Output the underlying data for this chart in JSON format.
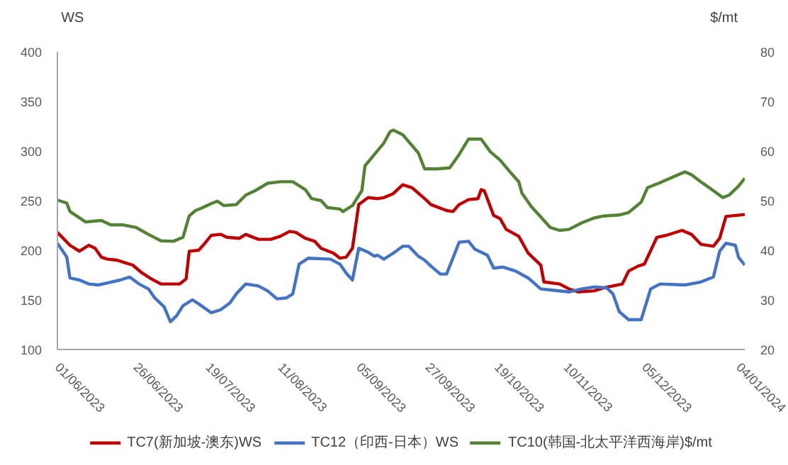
{
  "chart_data": {
    "type": "line",
    "ylabel": "WS",
    "y2label": "$/mt",
    "xlim": [
      "2023-06-01",
      "2024-01-06"
    ],
    "xticks": [
      {
        "value": "2023-06-01",
        "label": "01/06/2023"
      },
      {
        "value": "2023-06-26",
        "label": "26/06/2023"
      },
      {
        "value": "2023-07-19",
        "label": "19/07/2023"
      },
      {
        "value": "2023-08-11",
        "label": "11/08/2023"
      },
      {
        "value": "2023-09-05",
        "label": "05/09/2023"
      },
      {
        "value": "2023-09-27",
        "label": "27/09/2023"
      },
      {
        "value": "2023-10-19",
        "label": "19/10/2023"
      },
      {
        "value": "2023-11-10",
        "label": "10/11/2023"
      },
      {
        "value": "2023-12-05",
        "label": "05/12/2023"
      },
      {
        "value": "2024-01-04",
        "label": "04/01/2024"
      }
    ],
    "ylim": [
      100,
      400
    ],
    "yticks": [
      100,
      150,
      200,
      250,
      300,
      350,
      400
    ],
    "y2lim": [
      20,
      80
    ],
    "y2ticks": [
      20,
      30,
      40,
      50,
      60,
      70,
      80
    ],
    "grid": false,
    "legend": "bottom",
    "line_style": "solid",
    "series": [
      {
        "name": "TC7(新加坡-澳东)WS",
        "color": "#c00000",
        "x": [
          "2023-06-01",
          "2023-06-05",
          "2023-06-08",
          "2023-06-11",
          "2023-06-13",
          "2023-06-15",
          "2023-06-17",
          "2023-06-20",
          "2023-06-22",
          "2023-06-25",
          "2023-06-28",
          "2023-07-01",
          "2023-07-04",
          "2023-07-10",
          "2023-07-12",
          "2023-07-13",
          "2023-07-16",
          "2023-07-18",
          "2023-07-20",
          "2023-07-23",
          "2023-07-25",
          "2023-07-29",
          "2023-07-31",
          "2023-08-04",
          "2023-08-08",
          "2023-08-11",
          "2023-08-14",
          "2023-08-16",
          "2023-08-19",
          "2023-08-22",
          "2023-08-24",
          "2023-08-28",
          "2023-08-30",
          "2023-09-01",
          "2023-09-03",
          "2023-09-05",
          "2023-09-08",
          "2023-09-11",
          "2023-09-13",
          "2023-09-16",
          "2023-09-19",
          "2023-09-22",
          "2023-09-26",
          "2023-09-28",
          "2023-10-03",
          "2023-10-05",
          "2023-10-07",
          "2023-10-10",
          "2023-10-13",
          "2023-10-14",
          "2023-10-15",
          "2023-10-18",
          "2023-10-20",
          "2023-10-22",
          "2023-10-26",
          "2023-10-29",
          "2023-11-02",
          "2023-11-03",
          "2023-11-08",
          "2023-11-11",
          "2023-11-14",
          "2023-11-19",
          "2023-11-22",
          "2023-11-28",
          "2023-11-30",
          "2023-12-03",
          "2023-12-05",
          "2023-12-09",
          "2023-12-12",
          "2023-12-17",
          "2023-12-20",
          "2023-12-23",
          "2023-12-27",
          "2023-12-29",
          "2023-12-31",
          "2024-01-06"
        ],
        "values": [
          218,
          205,
          199,
          205,
          202,
          193,
          191,
          190,
          188,
          185,
          177,
          171,
          166,
          166,
          171,
          199,
          200,
          207,
          215,
          216,
          213,
          212,
          216,
          211,
          211,
          214,
          219,
          218,
          212,
          209,
          202,
          197,
          192,
          193,
          202,
          246,
          253,
          252,
          253,
          257,
          266,
          263,
          252,
          246,
          240,
          239,
          246,
          251,
          252,
          261,
          260,
          235,
          232,
          221,
          214,
          197,
          185,
          168,
          166,
          161,
          158,
          159,
          162,
          166,
          179,
          184,
          186,
          213,
          215,
          220,
          216,
          206,
          204,
          212,
          234,
          236
        ]
      },
      {
        "name": "TC12（印西-日本）WS",
        "color": "#4472c4",
        "x": [
          "2023-06-01",
          "2023-06-04",
          "2023-06-05",
          "2023-06-08",
          "2023-06-11",
          "2023-06-14",
          "2023-06-17",
          "2023-06-21",
          "2023-06-24",
          "2023-06-27",
          "2023-06-30",
          "2023-07-02",
          "2023-07-05",
          "2023-07-07",
          "2023-07-09",
          "2023-07-11",
          "2023-07-14",
          "2023-07-16",
          "2023-07-20",
          "2023-07-23",
          "2023-07-26",
          "2023-07-28",
          "2023-07-31",
          "2023-08-04",
          "2023-08-07",
          "2023-08-10",
          "2023-08-13",
          "2023-08-15",
          "2023-08-17",
          "2023-08-20",
          "2023-08-27",
          "2023-08-30",
          "2023-09-01",
          "2023-09-03",
          "2023-09-05",
          "2023-09-08",
          "2023-09-10",
          "2023-09-11",
          "2023-09-13",
          "2023-09-15",
          "2023-09-16",
          "2023-09-19",
          "2023-09-21",
          "2023-09-24",
          "2023-09-26",
          "2023-09-28",
          "2023-10-01",
          "2023-10-03",
          "2023-10-07",
          "2023-10-10",
          "2023-10-12",
          "2023-10-16",
          "2023-10-18",
          "2023-10-21",
          "2023-10-25",
          "2023-10-29",
          "2023-11-02",
          "2023-11-05",
          "2023-11-11",
          "2023-11-15",
          "2023-11-19",
          "2023-11-23",
          "2023-11-25",
          "2023-11-27",
          "2023-11-30",
          "2023-12-04",
          "2023-12-07",
          "2023-12-10",
          "2023-12-18",
          "2023-12-23",
          "2023-12-27",
          "2023-12-29",
          "2023-12-31",
          "2024-01-03",
          "2024-01-04",
          "2024-01-06"
        ],
        "values": [
          207,
          193,
          172,
          170,
          166,
          165,
          167,
          170,
          173,
          166,
          161,
          152,
          143,
          128,
          134,
          144,
          150,
          146,
          137,
          140,
          147,
          156,
          166,
          164,
          159,
          151,
          152,
          156,
          186,
          192,
          191,
          186,
          177,
          170,
          202,
          198,
          194,
          195,
          191,
          195,
          197,
          204,
          204,
          194,
          190,
          184,
          176,
          176,
          208,
          209,
          201,
          195,
          182,
          183,
          179,
          172,
          161,
          160,
          158,
          161,
          163,
          162,
          156,
          138,
          130,
          130,
          161,
          166,
          165,
          168,
          173,
          199,
          207,
          205,
          193,
          185
        ]
      },
      {
        "name": "TC10(韩国-北太平洋西海岸)$/mt",
        "color": "#548235",
        "axis": "y2",
        "x": [
          "2023-06-01",
          "2023-06-04",
          "2023-06-05",
          "2023-06-10",
          "2023-06-15",
          "2023-06-18",
          "2023-06-22",
          "2023-06-26",
          "2023-06-30",
          "2023-07-04",
          "2023-07-08",
          "2023-07-11",
          "2023-07-13",
          "2023-07-15",
          "2023-07-17",
          "2023-07-20",
          "2023-07-22",
          "2023-07-24",
          "2023-07-28",
          "2023-07-31",
          "2023-08-03",
          "2023-08-07",
          "2023-08-11",
          "2023-08-15",
          "2023-08-19",
          "2023-08-21",
          "2023-08-24",
          "2023-08-26",
          "2023-08-30",
          "2023-08-31",
          "2023-09-03",
          "2023-09-06",
          "2023-09-07",
          "2023-09-10",
          "2023-09-13",
          "2023-09-15",
          "2023-09-16",
          "2023-09-19",
          "2023-09-24",
          "2023-09-26",
          "2023-09-30",
          "2023-10-04",
          "2023-10-07",
          "2023-10-10",
          "2023-10-14",
          "2023-10-17",
          "2023-10-20",
          "2023-10-24",
          "2023-10-26",
          "2023-10-27",
          "2023-10-30",
          "2023-11-02",
          "2023-11-05",
          "2023-11-08",
          "2023-11-11",
          "2023-11-15",
          "2023-11-19",
          "2023-11-22",
          "2023-11-27",
          "2023-11-30",
          "2023-12-04",
          "2023-12-06",
          "2023-12-10",
          "2023-12-15",
          "2023-12-18",
          "2023-12-20",
          "2023-12-23",
          "2023-12-27",
          "2023-12-30",
          "2024-01-01",
          "2024-01-04",
          "2024-01-06"
        ],
        "values": [
          50.1,
          49.5,
          47.8,
          45.7,
          46.0,
          45.1,
          45.1,
          44.6,
          43.2,
          41.9,
          41.8,
          42.6,
          46.9,
          48.0,
          48.5,
          49.4,
          49.9,
          49.0,
          49.2,
          51.1,
          52.0,
          53.5,
          53.8,
          53.8,
          52.2,
          50.4,
          50.0,
          48.6,
          48.3,
          47.8,
          49.0,
          52.0,
          57.0,
          59.3,
          61.6,
          63.9,
          64.2,
          63.3,
          59.6,
          56.4,
          56.4,
          56.6,
          59.3,
          62.4,
          62.4,
          59.8,
          58.2,
          55.2,
          53.8,
          51.5,
          48.8,
          46.7,
          44.6,
          44.0,
          44.2,
          45.5,
          46.5,
          46.9,
          47.1,
          47.6,
          49.7,
          52.6,
          53.6,
          55.0,
          55.8,
          55.2,
          53.8,
          52.0,
          50.6,
          51.1,
          52.9,
          54.5
        ]
      }
    ]
  }
}
